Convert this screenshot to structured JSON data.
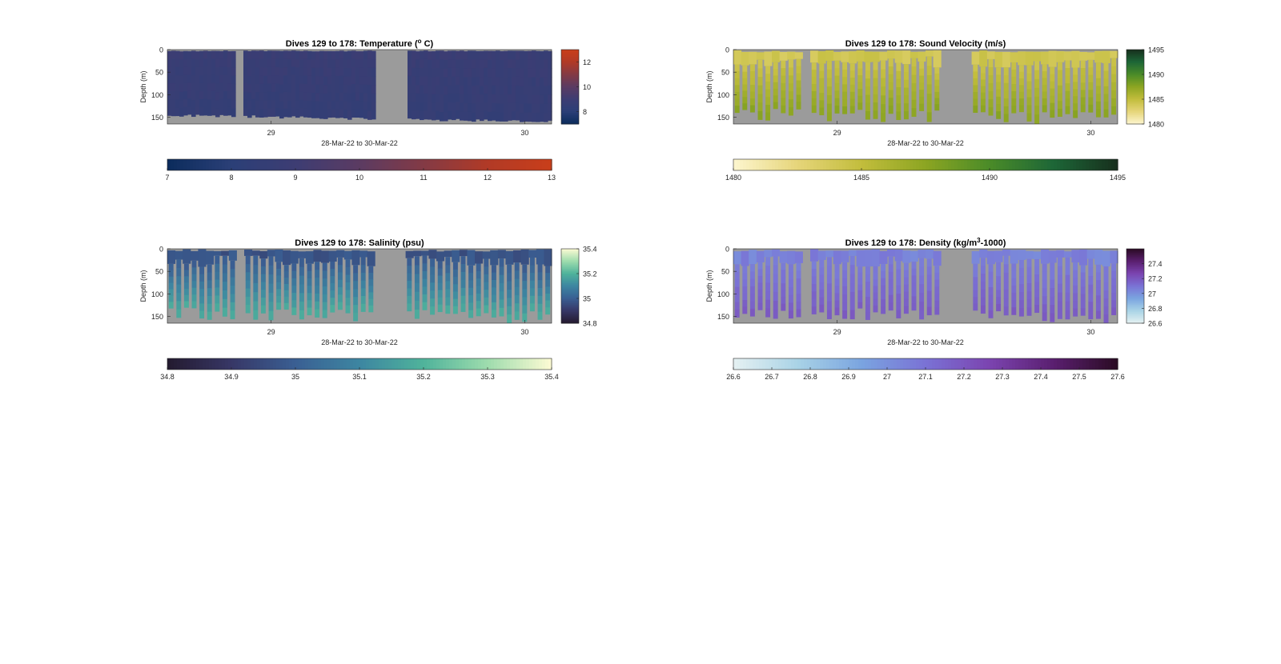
{
  "figure": {
    "xlabel": "28-Mar-22 to 30-Mar-22",
    "ylabel": "Depth (m)",
    "x_tick_labels": [
      "29",
      "30"
    ],
    "y_tick_labels": [
      "0",
      "50",
      "100",
      "150"
    ]
  },
  "chart_data": [
    {
      "type": "heatmap",
      "title": "Dives 129 to 178: Temperature (",
      "title_sup": "o",
      "title_end": " C)",
      "xlabel": "28-Mar-22 to 30-Mar-22",
      "ylabel": "Depth (m)",
      "colormap": [
        "#0b2c5c",
        "#2b3f77",
        "#3d3d73",
        "#5b3b62",
        "#833a45",
        "#b13a26",
        "#c93e1a"
      ],
      "clim": [
        7,
        13
      ],
      "mean_value": 8.8,
      "ylim": [
        0,
        165
      ],
      "yticks": [
        0,
        50,
        100,
        150
      ],
      "right_colorbar_ticks": [
        "12",
        "10",
        "8"
      ],
      "right_colorbar_values": [
        12,
        10,
        8
      ],
      "bottom_colorbar_ticks": [
        "7",
        "8",
        "9",
        "10",
        "11",
        "12",
        "13"
      ],
      "profile_style": "continuous",
      "gaps": [
        [
          0.18,
          0.2
        ],
        [
          0.54,
          0.62
        ]
      ],
      "bottom_depth_left": 145,
      "bottom_depth_right": 160
    },
    {
      "type": "heatmap",
      "title": "Dives 129 to 178: Sound Velocity (m/s)",
      "title_sup": "",
      "title_end": "",
      "xlabel": "28-Mar-22 to 30-Mar-22",
      "ylabel": "Depth (m)",
      "colormap": [
        "#fdf6cf",
        "#e6d57a",
        "#c2bd3c",
        "#8ca522",
        "#4a8b28",
        "#1d6637",
        "#172f1d"
      ],
      "clim": [
        1480,
        1495
      ],
      "ylim": [
        0,
        165
      ],
      "yticks": [
        0,
        50,
        100,
        150
      ],
      "right_colorbar_ticks": [
        "1495",
        "1490",
        "1485",
        "1480"
      ],
      "right_colorbar_values": [
        1495,
        1490,
        1485,
        1480
      ],
      "bottom_colorbar_ticks": [
        "1480",
        "1485",
        "1490",
        "1495"
      ],
      "profile_style": "bars",
      "surface_value": 1484,
      "deep_value": 1487.5,
      "n_profiles": 50,
      "gaps": [
        [
          0.18,
          0.2
        ],
        [
          0.54,
          0.62
        ]
      ]
    },
    {
      "type": "heatmap",
      "title": "Dives 129 to 178: Salinity (psu)",
      "title_sup": "",
      "title_end": "",
      "xlabel": "28-Mar-22 to 30-Mar-22",
      "ylabel": "Depth (m)",
      "colormap": [
        "#241a2f",
        "#373766",
        "#3a5f93",
        "#3d86a1",
        "#4fb39b",
        "#9edcad",
        "#fdfbd4"
      ],
      "clim": [
        34.8,
        35.4
      ],
      "ylim": [
        0,
        165
      ],
      "yticks": [
        0,
        50,
        100,
        150
      ],
      "right_colorbar_ticks": [
        "35.4",
        "35.2",
        "35",
        "34.8"
      ],
      "right_colorbar_values": [
        35.4,
        35.2,
        35.0,
        34.8
      ],
      "bottom_colorbar_ticks": [
        "34.8",
        "34.9",
        "35",
        "35.1",
        "35.2",
        "35.3",
        "35.4"
      ],
      "profile_style": "bars",
      "surface_value": 34.97,
      "deep_value": 35.18,
      "n_profiles": 50,
      "gaps": [
        [
          0.18,
          0.2
        ],
        [
          0.54,
          0.62
        ]
      ]
    },
    {
      "type": "heatmap",
      "title": "Dives 129 to 178: Density (kg/m",
      "title_sup": "3",
      "title_end": "-1000)",
      "xlabel": "28-Mar-22 to 30-Mar-22",
      "ylabel": "Depth (m)",
      "colormap": [
        "#e5f1f2",
        "#a9d3e6",
        "#7aa4e0",
        "#7a72d5",
        "#7b44b0",
        "#5a1f6f",
        "#2a0b23"
      ],
      "clim": [
        26.6,
        27.6
      ],
      "ylim": [
        0,
        165
      ],
      "yticks": [
        0,
        50,
        100,
        150
      ],
      "right_colorbar_ticks": [
        "27.4",
        "27.2",
        "27",
        "26.8",
        "26.6"
      ],
      "right_colorbar_values": [
        27.4,
        27.2,
        27.0,
        26.8,
        26.6
      ],
      "bottom_colorbar_ticks": [
        "26.6",
        "26.7",
        "26.8",
        "26.9",
        "27",
        "27.1",
        "27.2",
        "27.3",
        "27.4",
        "27.5",
        "27.6"
      ],
      "profile_style": "bars",
      "surface_value": 27.05,
      "deep_value": 27.18,
      "n_profiles": 50,
      "gaps": [
        [
          0.18,
          0.2
        ],
        [
          0.54,
          0.62
        ]
      ]
    }
  ]
}
